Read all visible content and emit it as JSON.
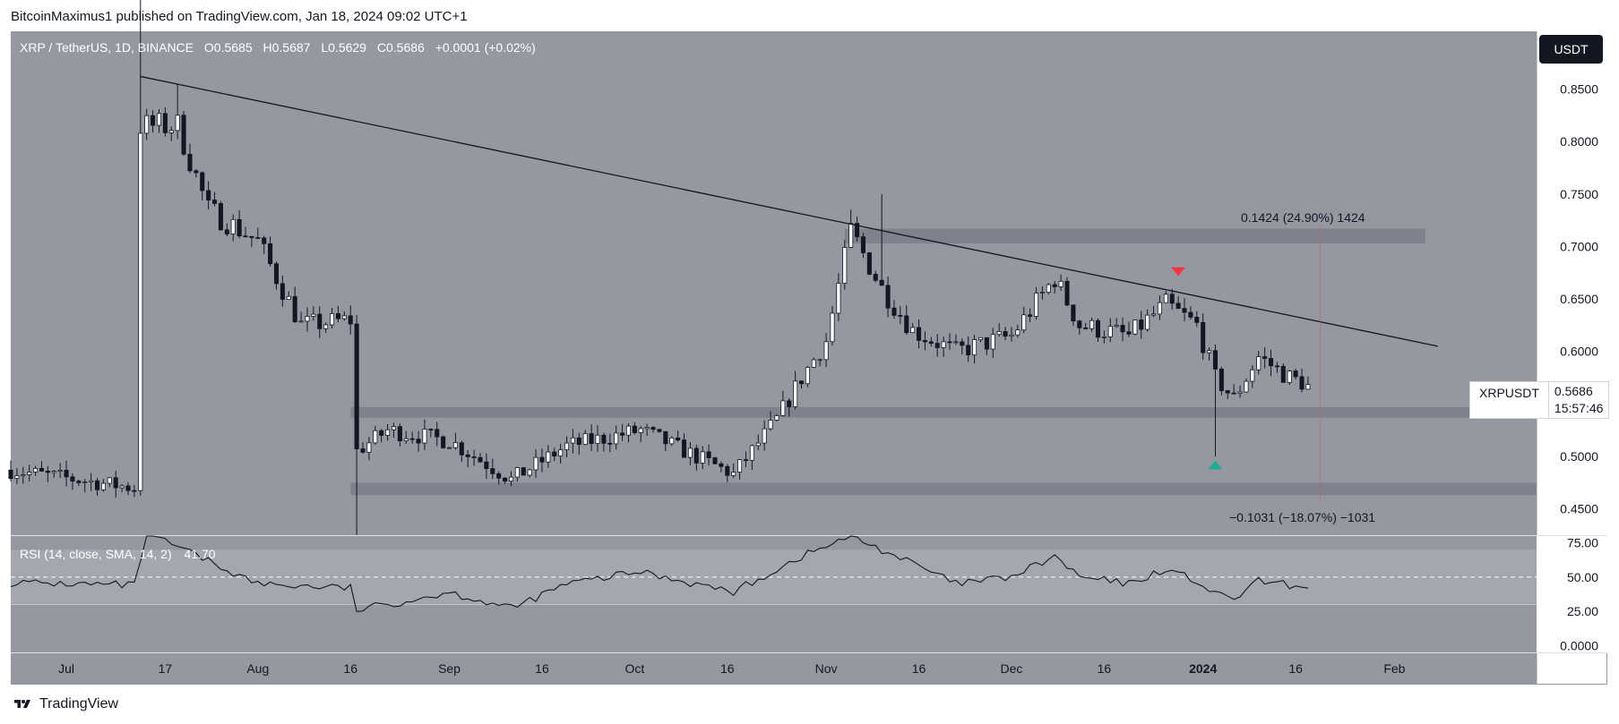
{
  "header": {
    "publisher": "BitcoinMaximus1 published on TradingView.com, Jan 18, 2024 09:02 UTC+1"
  },
  "footer": {
    "brand": "TradingView"
  },
  "colors": {
    "pane_bg": "#9598a1",
    "rsi_band": "#a8abb3",
    "up_candle": "#ffffff",
    "down_candle": "#131722",
    "trendline": "#131722",
    "sell_marker": "#f23645",
    "buy_marker": "#22ab94",
    "zone": "#787b86"
  },
  "chart_data": [
    {
      "type": "candlestick",
      "title": "XRP / TetherUS, 1D, BINANCE",
      "ohlc_label": {
        "o_key": "O",
        "o": "0.5685",
        "h_key": "H",
        "h": "0.5687",
        "l_key": "L",
        "l": "0.5629",
        "c_key": "C",
        "c": "0.5686",
        "change": "+0.0001 (+0.02%)"
      },
      "currency_tag": "USDT",
      "last_price_tag": {
        "symbol": "XRPUSDT",
        "price": "0.5686",
        "countdown": "15:57:46"
      },
      "ylim": [
        0.425,
        0.905
      ],
      "y_ticks": [
        "0.8500",
        "0.8000",
        "0.7500",
        "0.7000",
        "0.6500",
        "0.6000",
        "0.5500",
        "0.5000",
        "0.4500"
      ],
      "x_ticks": [
        "Jul",
        "17",
        "Aug",
        "16",
        "Sep",
        "16",
        "Oct",
        "16",
        "Nov",
        "16",
        "Dec",
        "16",
        "2024",
        "16",
        "Feb"
      ],
      "x_tick_dates": [
        "2023-07-01",
        "2023-07-17",
        "2023-08-01",
        "2023-08-16",
        "2023-09-01",
        "2023-09-16",
        "2023-10-01",
        "2023-10-16",
        "2023-11-01",
        "2023-11-16",
        "2023-12-01",
        "2023-12-16",
        "2024-01-01",
        "2024-01-16",
        "2024-02-01"
      ],
      "x_range": [
        "2023-06-22",
        "2024-02-24"
      ],
      "price_anchors": [
        {
          "date": "2023-06-22",
          "close": 0.487
        },
        {
          "date": "2023-07-12",
          "close": 0.47
        },
        {
          "date": "2023-07-13",
          "close": 0.815
        },
        {
          "date": "2023-07-19",
          "close": 0.815
        },
        {
          "date": "2023-07-24",
          "close": 0.735
        },
        {
          "date": "2023-08-01",
          "close": 0.705
        },
        {
          "date": "2023-08-08",
          "close": 0.625
        },
        {
          "date": "2023-08-16",
          "close": 0.63
        },
        {
          "date": "2023-08-17",
          "close": 0.505
        },
        {
          "date": "2023-08-22",
          "close": 0.525
        },
        {
          "date": "2023-09-01",
          "close": 0.515
        },
        {
          "date": "2023-09-11",
          "close": 0.478
        },
        {
          "date": "2023-09-20",
          "close": 0.51
        },
        {
          "date": "2023-10-02",
          "close": 0.525
        },
        {
          "date": "2023-10-17",
          "close": 0.483
        },
        {
          "date": "2023-10-24",
          "close": 0.535
        },
        {
          "date": "2023-10-28",
          "close": 0.575
        },
        {
          "date": "2023-11-01",
          "close": 0.61
        },
        {
          "date": "2023-11-05",
          "close": 0.715
        },
        {
          "date": "2023-11-10",
          "close": 0.66
        },
        {
          "date": "2023-11-15",
          "close": 0.62
        },
        {
          "date": "2023-11-22",
          "close": 0.6
        },
        {
          "date": "2023-12-01",
          "close": 0.615
        },
        {
          "date": "2023-12-08",
          "close": 0.67
        },
        {
          "date": "2023-12-12",
          "close": 0.625
        },
        {
          "date": "2023-12-20",
          "close": 0.615
        },
        {
          "date": "2023-12-26",
          "close": 0.645
        },
        {
          "date": "2023-12-31",
          "close": 0.625
        },
        {
          "date": "2024-01-03",
          "close": 0.575
        },
        {
          "date": "2024-01-06",
          "close": 0.555
        },
        {
          "date": "2024-01-10",
          "close": 0.595
        },
        {
          "date": "2024-01-15",
          "close": 0.575
        },
        {
          "date": "2024-01-18",
          "close": 0.5686
        }
      ],
      "marked_wicks": [
        {
          "date": "2023-07-13",
          "high": 0.935
        },
        {
          "date": "2023-07-19",
          "high": 0.855
        },
        {
          "date": "2023-08-17",
          "low": 0.425
        },
        {
          "date": "2023-11-05",
          "high": 0.735
        },
        {
          "date": "2023-11-10",
          "high": 0.75
        },
        {
          "date": "2024-01-03",
          "low": 0.5
        }
      ],
      "trendline": {
        "start": {
          "date": "2023-07-13",
          "price": 0.862
        },
        "end": {
          "date": "2024-02-08",
          "price": 0.605
        }
      },
      "zones": [
        {
          "top": 0.717,
          "bottom": 0.703,
          "from": "2023-11-04",
          "to": "2024-02-06"
        },
        {
          "top": 0.547,
          "bottom": 0.537,
          "from": "2023-08-16",
          "to": "2024-02-24"
        },
        {
          "top": 0.475,
          "bottom": 0.463,
          "from": "2023-08-16",
          "to": "2024-02-24"
        }
      ],
      "markers": [
        {
          "kind": "sell",
          "date": "2023-12-28",
          "price": 0.676
        },
        {
          "kind": "buy",
          "date": "2024-01-03",
          "price": 0.492
        }
      ],
      "measure_upper": {
        "text": "0.1424 (24.90%) 1424",
        "price": 0.739
      },
      "measure_lower": {
        "text": "−0.1031 (−18.07%) −1031",
        "price": 0.447
      },
      "measure_line_date": "2024-01-20"
    },
    {
      "type": "line",
      "title": "RSI (14, close, SMA, 14, 2)",
      "value_label": "41.70",
      "ylim": [
        -5,
        80
      ],
      "band": [
        30,
        70
      ],
      "midline": 50,
      "y_ticks": [
        "75.00",
        "50.00",
        "25.00",
        "0.0000"
      ],
      "x_range": [
        "2023-06-22",
        "2024-02-24"
      ],
      "anchors": [
        {
          "date": "2023-06-22",
          "value": 46
        },
        {
          "date": "2023-07-12",
          "value": 44
        },
        {
          "date": "2023-07-14",
          "value": 82
        },
        {
          "date": "2023-07-20",
          "value": 70
        },
        {
          "date": "2023-08-01",
          "value": 45
        },
        {
          "date": "2023-08-16",
          "value": 42
        },
        {
          "date": "2023-08-17",
          "value": 26
        },
        {
          "date": "2023-08-22",
          "value": 30
        },
        {
          "date": "2023-09-01",
          "value": 39
        },
        {
          "date": "2023-09-11",
          "value": 27
        },
        {
          "date": "2023-09-20",
          "value": 45
        },
        {
          "date": "2023-10-02",
          "value": 54
        },
        {
          "date": "2023-10-17",
          "value": 39
        },
        {
          "date": "2023-10-28",
          "value": 65
        },
        {
          "date": "2023-11-05",
          "value": 80
        },
        {
          "date": "2023-11-15",
          "value": 60
        },
        {
          "date": "2023-11-22",
          "value": 45
        },
        {
          "date": "2023-12-01",
          "value": 50
        },
        {
          "date": "2023-12-08",
          "value": 65
        },
        {
          "date": "2023-12-12",
          "value": 50
        },
        {
          "date": "2023-12-20",
          "value": 45
        },
        {
          "date": "2023-12-26",
          "value": 56
        },
        {
          "date": "2023-12-31",
          "value": 47
        },
        {
          "date": "2024-01-03",
          "value": 37
        },
        {
          "date": "2024-01-06",
          "value": 34
        },
        {
          "date": "2024-01-10",
          "value": 47
        },
        {
          "date": "2024-01-18",
          "value": 42
        }
      ]
    }
  ]
}
